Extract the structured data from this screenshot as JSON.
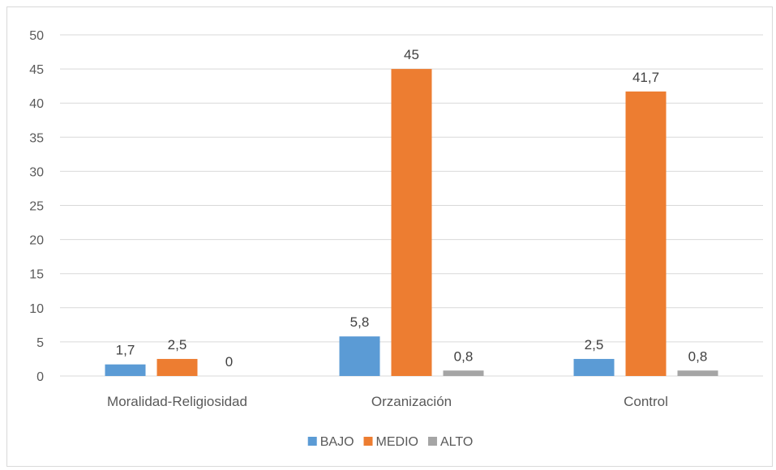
{
  "chart_data": {
    "type": "bar",
    "title": "",
    "xlabel": "",
    "ylabel": "",
    "categories": [
      "Moralidad-Religiosidad",
      "Orzanización",
      "Control"
    ],
    "series": [
      {
        "name": "BAJO",
        "color": "#5b9bd5",
        "values": [
          1.7,
          5.8,
          2.5
        ],
        "labels": [
          "1,7",
          "5,8",
          "2,5"
        ]
      },
      {
        "name": "MEDIO",
        "color": "#ed7d31",
        "values": [
          2.5,
          45,
          41.7
        ],
        "labels": [
          "2,5",
          "45",
          "41,7"
        ]
      },
      {
        "name": "ALTO",
        "color": "#a5a5a5",
        "values": [
          0,
          0.8,
          0.8
        ],
        "labels": [
          "0",
          "0,8",
          "0,8"
        ]
      }
    ],
    "ylim": [
      0,
      50
    ],
    "yticks": [
      "0",
      "5",
      "10",
      "15",
      "20",
      "25",
      "30",
      "35",
      "40",
      "45",
      "50"
    ],
    "grid": true,
    "legend_position": "bottom"
  }
}
